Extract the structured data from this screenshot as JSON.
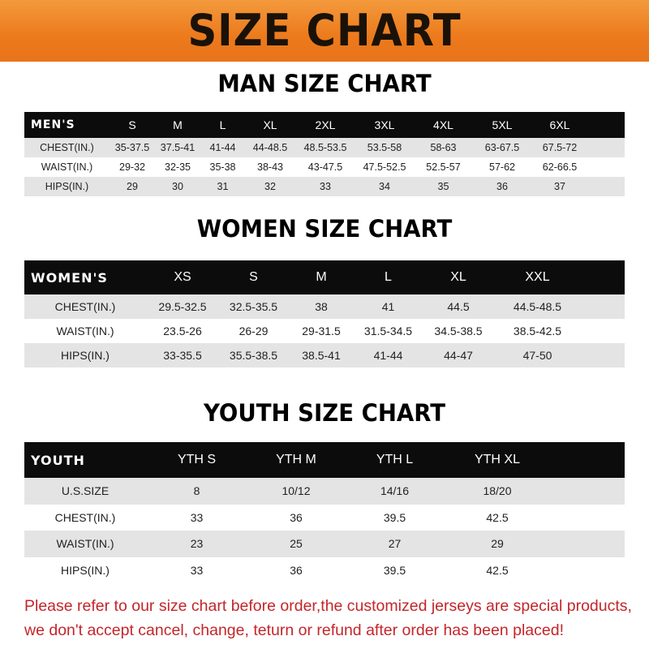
{
  "banner": {
    "title": "SIZE CHART",
    "color": "#ec7a1c"
  },
  "men": {
    "title": "MAN SIZE CHART",
    "header": [
      "MEN'S",
      "S",
      "M",
      "L",
      "XL",
      "2XL",
      "3XL",
      "4XL",
      "5XL",
      "6XL"
    ],
    "rows": [
      [
        "CHEST(IN.)",
        "35-37.5",
        "37.5-41",
        "41-44",
        "44-48.5",
        "48.5-53.5",
        "53.5-58",
        "58-63",
        "63-67.5",
        "67.5-72"
      ],
      [
        "WAIST(IN.)",
        "29-32",
        "32-35",
        "35-38",
        "38-43",
        "43-47.5",
        "47.5-52.5",
        "52.5-57",
        "57-62",
        "62-66.5"
      ],
      [
        "HIPS(IN.)",
        "29",
        "30",
        "31",
        "32",
        "33",
        "34",
        "35",
        "36",
        "37"
      ]
    ]
  },
  "women": {
    "title": "WOMEN SIZE CHART",
    "header": [
      "WOMEN'S",
      "XS",
      "S",
      "M",
      "L",
      "XL",
      "XXL"
    ],
    "rows": [
      [
        "CHEST(IN.)",
        "29.5-32.5",
        "32.5-35.5",
        "38",
        "41",
        "44.5",
        "44.5-48.5"
      ],
      [
        "WAIST(IN.)",
        "23.5-26",
        "26-29",
        "29-31.5",
        "31.5-34.5",
        "34.5-38.5",
        "38.5-42.5"
      ],
      [
        "HIPS(IN.)",
        "33-35.5",
        "35.5-38.5",
        "38.5-41",
        "41-44",
        "44-47",
        "47-50"
      ]
    ]
  },
  "youth": {
    "title": "YOUTH SIZE CHART",
    "header": [
      "YOUTH",
      "YTH S",
      "YTH M",
      "YTH L",
      "YTH XL"
    ],
    "rows": [
      [
        "U.S.SIZE",
        "8",
        "10/12",
        "14/16",
        "18/20"
      ],
      [
        "CHEST(IN.)",
        "33",
        "36",
        "39.5",
        "42.5"
      ],
      [
        "WAIST(IN.)",
        "23",
        "25",
        "27",
        "29"
      ],
      [
        "HIPS(IN.)",
        "33",
        "36",
        "39.5",
        "42.5"
      ]
    ]
  },
  "note": {
    "line1": "Please refer to our size chart before order,the customized jerseys are special products,",
    "line2": "we don't accept cancel, change, teturn or refund after order has been placed!",
    "color": "#c3262a"
  }
}
